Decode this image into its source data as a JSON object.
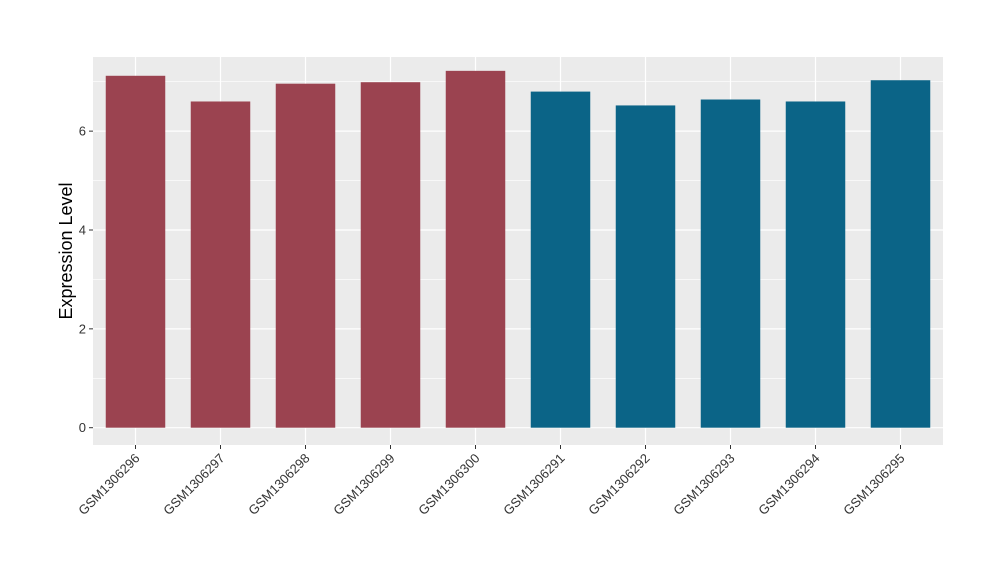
{
  "chart_data": {
    "type": "bar",
    "xlabel": "",
    "ylabel": "Expression Level",
    "ylim": [
      -0.35,
      7.5
    ],
    "yticks": [
      0,
      2,
      4,
      6
    ],
    "grid": true,
    "legend": "none",
    "categories": [
      "GSM1306296",
      "GSM1306297",
      "GSM1306298",
      "GSM1306299",
      "GSM1306300",
      "GSM1306291",
      "GSM1306292",
      "GSM1306293",
      "GSM1306294",
      "GSM1306295"
    ],
    "values": [
      7.12,
      6.6,
      6.96,
      6.99,
      7.22,
      6.8,
      6.52,
      6.64,
      6.6,
      7.03
    ],
    "bar_colors": [
      "#9b4350",
      "#9b4350",
      "#9b4350",
      "#9b4350",
      "#9b4350",
      "#0b6487",
      "#0b6487",
      "#0b6487",
      "#0b6487",
      "#0b6487"
    ],
    "panel_background": "#ebebeb",
    "grid_color": "#ffffff"
  }
}
